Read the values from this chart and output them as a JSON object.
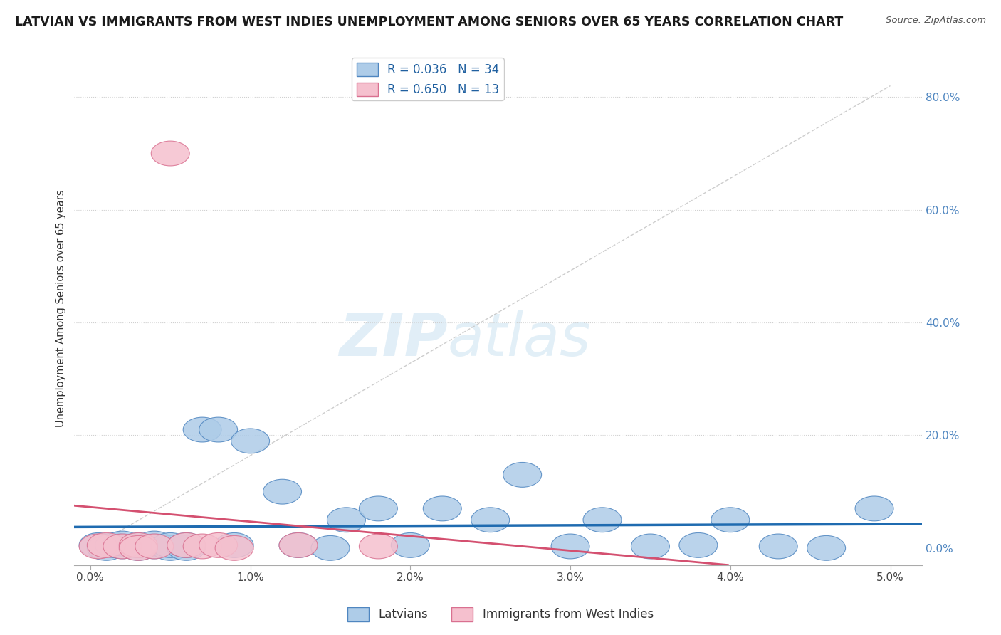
{
  "title": "LATVIAN VS IMMIGRANTS FROM WEST INDIES UNEMPLOYMENT AMONG SENIORS OVER 65 YEARS CORRELATION CHART",
  "source": "Source: ZipAtlas.com",
  "ylabel": "Unemployment Among Seniors over 65 years",
  "xlim": [
    -0.001,
    0.052
  ],
  "ylim": [
    -0.03,
    0.88
  ],
  "xtick_positions": [
    0.0,
    0.01,
    0.02,
    0.03,
    0.04,
    0.05
  ],
  "xtick_labels": [
    "0.0%",
    "1.0%",
    "2.0%",
    "3.0%",
    "4.0%",
    "5.0%"
  ],
  "ytick_positions": [
    0.0,
    0.2,
    0.4,
    0.6,
    0.8
  ],
  "ytick_labels": [
    "0.0%",
    "20.0%",
    "40.0%",
    "60.0%",
    "80.0%"
  ],
  "latvian_color": "#aecce8",
  "latvian_edge_color": "#4f86c0",
  "west_indies_color": "#f5c0ce",
  "west_indies_edge_color": "#d97090",
  "latvian_line_color": "#1f6bb0",
  "west_indies_line_color": "#d45070",
  "diagonal_color": "#c8c8c8",
  "ytick_color": "#4f86c0",
  "R_latvian": 0.036,
  "N_latvian": 34,
  "R_west_indies": 0.65,
  "N_west_indies": 13,
  "legend_label_1": "Latvians",
  "legend_label_2": "Immigrants from West Indies",
  "watermark_ZIP": "ZIP",
  "watermark_atlas": "atlas",
  "background_color": "#ffffff",
  "latvian_x": [
    0.0005,
    0.001,
    0.0015,
    0.002,
    0.002,
    0.003,
    0.003,
    0.004,
    0.004,
    0.005,
    0.005,
    0.006,
    0.006,
    0.007,
    0.008,
    0.009,
    0.01,
    0.012,
    0.013,
    0.015,
    0.016,
    0.018,
    0.02,
    0.022,
    0.025,
    0.027,
    0.03,
    0.032,
    0.035,
    0.038,
    0.04,
    0.043,
    0.046,
    0.049
  ],
  "latvian_y": [
    0.005,
    0.0,
    0.005,
    0.003,
    0.008,
    0.0,
    0.005,
    0.003,
    0.008,
    0.0,
    0.005,
    0.0,
    0.005,
    0.21,
    0.21,
    0.005,
    0.19,
    0.1,
    0.005,
    0.0,
    0.05,
    0.07,
    0.005,
    0.07,
    0.05,
    0.13,
    0.003,
    0.05,
    0.003,
    0.005,
    0.05,
    0.003,
    0.0,
    0.07
  ],
  "west_indies_x": [
    0.0005,
    0.001,
    0.002,
    0.003,
    0.003,
    0.004,
    0.005,
    0.006,
    0.007,
    0.008,
    0.009,
    0.013,
    0.018
  ],
  "west_indies_y": [
    0.003,
    0.005,
    0.003,
    0.005,
    0.0,
    0.003,
    0.7,
    0.005,
    0.003,
    0.005,
    0.0,
    0.005,
    0.003
  ]
}
